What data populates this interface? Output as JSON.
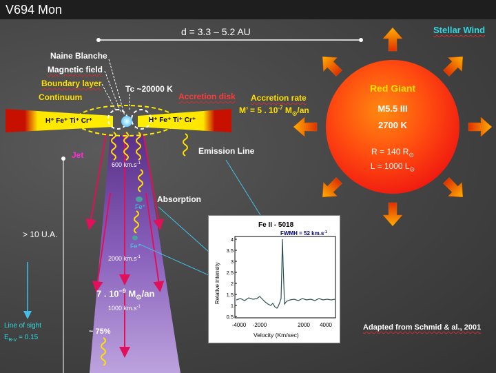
{
  "title": "V694 Mon",
  "stellar_wind": "Stellar Wind",
  "distance": "d = 3.3 – 5.2 AU",
  "labels": {
    "naine_blanche": "Naine Blanche",
    "magnetic_field": "Magnetic field",
    "boundary_layer": "Boundary layer",
    "continuum": "Continuum",
    "tc": "Tc ~20000 K",
    "accretion_disk": "Accretion disk",
    "accretion_rate": "Accretion rate",
    "accretion_rate_value_prefix": "M’ = 5 . 10",
    "accretion_rate_exp": "-7",
    "accretion_rate_unit": "M",
    "accretion_rate_suffix": "/an",
    "ions_left": "H⁺ Fe⁺ Ti⁺ Cr⁺",
    "ions_right": "H⁺ Fe⁺ Ti⁺ Cr⁺",
    "jet": "Jet",
    "emission_line": "Emission Line",
    "absorption": "Absorption",
    "speed_600": "600 km.s",
    "speed_2000": "2000 km.s",
    "speed_1000": "1000 km.s",
    "speed_exp": "-1",
    "fe_plus_1": "Fe⁺",
    "fe_plus_2": "Fe⁺",
    "mass_loss_prefix": "7 . 10",
    "mass_loss_exp": "−9",
    "mass_loss_unit": "M",
    "mass_loss_suffix": "/an",
    "percent": "~ 75%",
    "height": "> 10 U.A.",
    "line_of_sight": "Line of sight",
    "extinction": "E",
    "extinction_sub": "B-V",
    "extinction_value": " = 0.15",
    "adapted": "Adapted from Schmid & al., 2001"
  },
  "red_giant": {
    "name": "Red Giant",
    "type": "M5.5 III",
    "temp": "2700 K",
    "radius": "R = 140 R",
    "lum": "L = 1000 L"
  },
  "spectrum": {
    "title": "Fe II - 5018",
    "fwhm": "FWMH = 52 km.s",
    "fwhm_exp": "-1",
    "ylabel": "Relative intensity",
    "xlabel": "Velocity (Km/sec)",
    "yticks": [
      "0.5",
      "1",
      "1.5",
      "2",
      "2.5",
      "3",
      "3.5",
      "4"
    ],
    "xticks": [
      "-4000",
      "-2000",
      "2000",
      "4000"
    ]
  },
  "colors": {
    "star": "#ff3a10",
    "disk_inner": "#ffee00",
    "disk_outer": "#cc1100",
    "jet": "#8a5bc0",
    "arrow": "#f07818",
    "label_yellow": "#ffe000",
    "label_red": "#ff3a3a",
    "label_cyan": "#33d8e0"
  }
}
